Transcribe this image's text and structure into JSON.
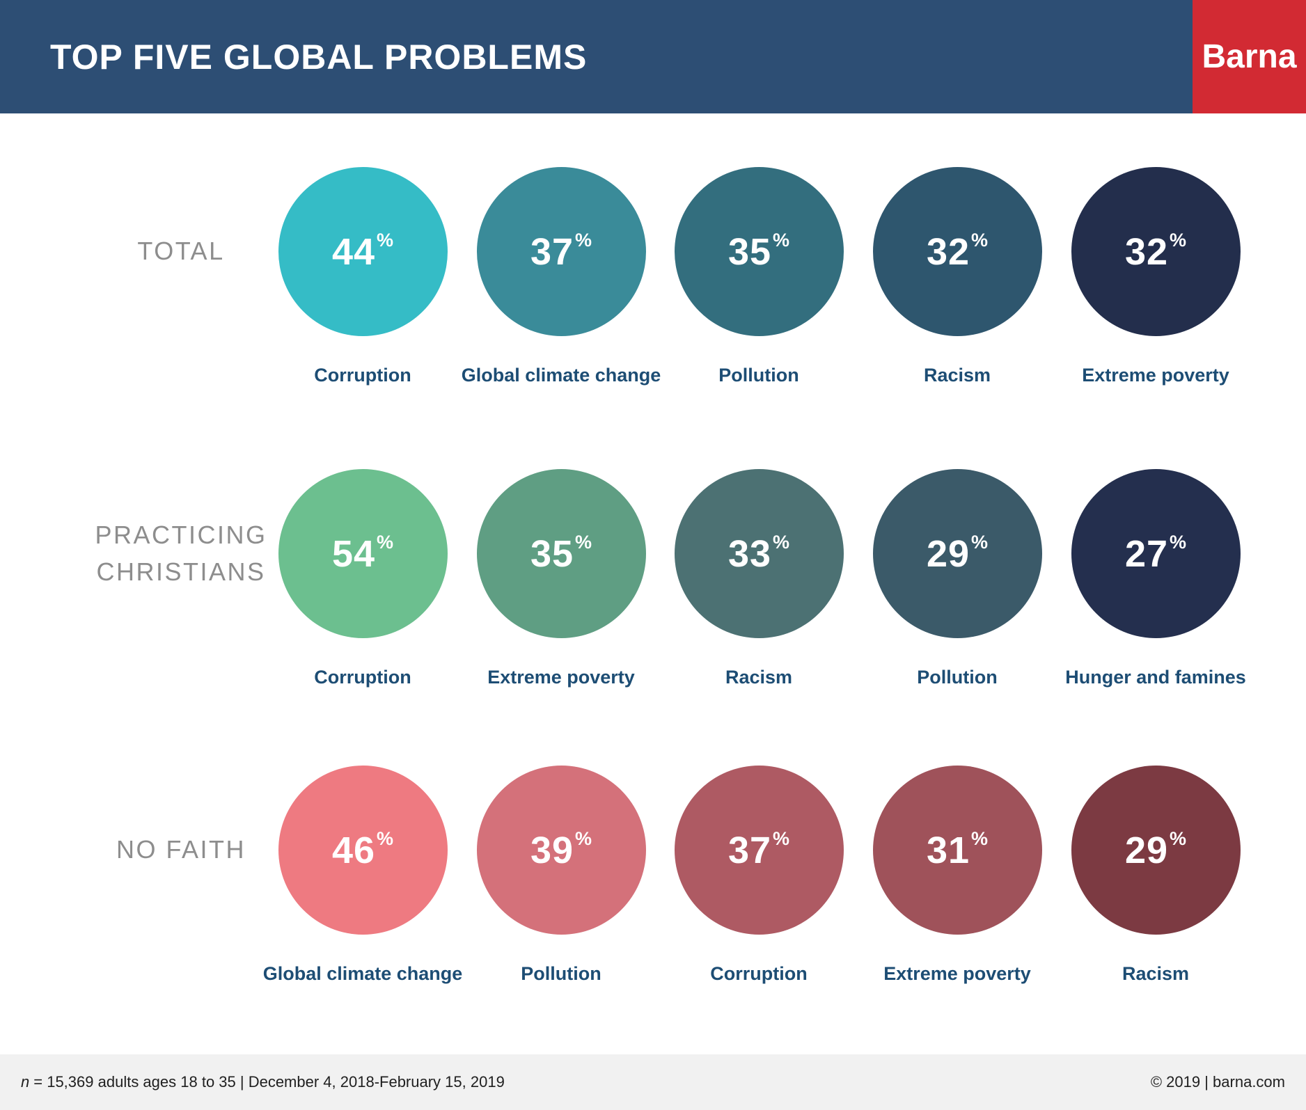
{
  "header": {
    "title": "TOP FIVE GLOBAL PROBLEMS",
    "brand": "Barna",
    "bg_color": "#2d4e74",
    "brand_bg_color": "#d22a33"
  },
  "percent_symbol": "%",
  "rows": [
    {
      "category": "TOTAL",
      "items": [
        {
          "label": "Corruption",
          "value": 44,
          "color": "#35bcc6"
        },
        {
          "label": "Global climate change",
          "value": 37,
          "color": "#3a8b99"
        },
        {
          "label": "Pollution",
          "value": 35,
          "color": "#336e7e"
        },
        {
          "label": "Racism",
          "value": 32,
          "color": "#2e566e"
        },
        {
          "label": "Extreme poverty",
          "value": 32,
          "color": "#232e4c"
        }
      ]
    },
    {
      "category": "PRACTICING CHRISTIANS",
      "items": [
        {
          "label": "Corruption",
          "value": 54,
          "color": "#6cbf8f"
        },
        {
          "label": "Extreme poverty",
          "value": 35,
          "color": "#5f9e83"
        },
        {
          "label": "Racism",
          "value": 33,
          "color": "#4c7173"
        },
        {
          "label": "Pollution",
          "value": 29,
          "color": "#3b5a69"
        },
        {
          "label": "Hunger and famines",
          "value": 27,
          "color": "#242f4e"
        }
      ]
    },
    {
      "category": "NO FAITH",
      "items": [
        {
          "label": "Global climate change",
          "value": 46,
          "color": "#ee7a81"
        },
        {
          "label": "Pollution",
          "value": 39,
          "color": "#d4717a"
        },
        {
          "label": "Corruption",
          "value": 37,
          "color": "#ae5a63"
        },
        {
          "label": "Extreme poverty",
          "value": 31,
          "color": "#9f525a"
        },
        {
          "label": "Racism",
          "value": 29,
          "color": "#7c3a42"
        }
      ]
    }
  ],
  "footer": {
    "n_label": "n",
    "note": "= 15,369 adults ages 18 to 35 | December 4, 2018-February 15, 2019",
    "copyright": "© 2019 | barna.com"
  },
  "chart_data": {
    "type": "bubble",
    "title": "TOP FIVE GLOBAL PROBLEMS",
    "unit": "%",
    "series": [
      {
        "name": "TOTAL",
        "points": [
          {
            "label": "Corruption",
            "value": 44
          },
          {
            "label": "Global climate change",
            "value": 37
          },
          {
            "label": "Pollution",
            "value": 35
          },
          {
            "label": "Racism",
            "value": 32
          },
          {
            "label": "Extreme poverty",
            "value": 32
          }
        ]
      },
      {
        "name": "PRACTICING CHRISTIANS",
        "points": [
          {
            "label": "Corruption",
            "value": 54
          },
          {
            "label": "Extreme poverty",
            "value": 35
          },
          {
            "label": "Racism",
            "value": 33
          },
          {
            "label": "Pollution",
            "value": 29
          },
          {
            "label": "Hunger and famines",
            "value": 27
          }
        ]
      },
      {
        "name": "NO FAITH",
        "points": [
          {
            "label": "Global climate change",
            "value": 46
          },
          {
            "label": "Pollution",
            "value": 39
          },
          {
            "label": "Corruption",
            "value": 37
          },
          {
            "label": "Extreme poverty",
            "value": 31
          },
          {
            "label": "Racism",
            "value": 29
          }
        ]
      }
    ],
    "legend_position": "none",
    "grid": false,
    "source_note": "n = 15,369 adults ages 18 to 35 | December 4, 2018-February 15, 2019"
  }
}
